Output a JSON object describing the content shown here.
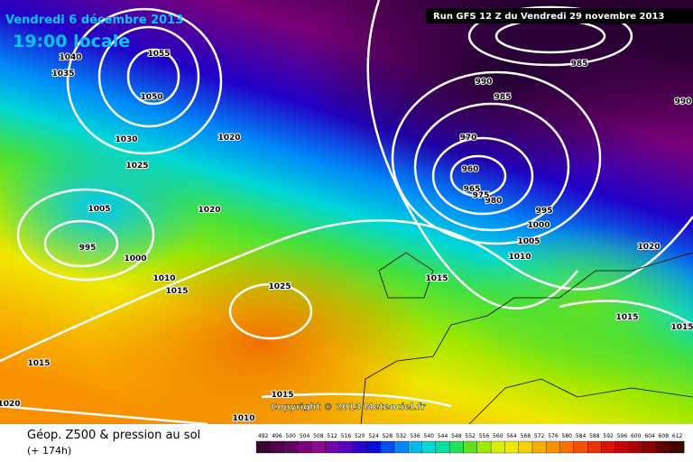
{
  "header": {
    "date": "Vendredi 6 décembre 2013",
    "time": "19:00 locale",
    "run": "Run GFS 12 Z du Vendredi 29 novembre 2013"
  },
  "copyright": "Copyright © 2013 Meteociel.fr",
  "footer": {
    "title": "Géop. Z500 & pression au sol",
    "lead": "(+ 174h)"
  },
  "isobar_labels": [
    "1055",
    "1050",
    "1040",
    "1035",
    "1030",
    "1025",
    "1020",
    "1020",
    "1005",
    "995",
    "1000",
    "1010",
    "1015",
    "1025",
    "1015",
    "1020",
    "1015",
    "1010",
    "1015",
    "1010",
    "1005",
    "1000",
    "995",
    "980",
    "975",
    "965",
    "960",
    "970",
    "985",
    "990",
    "985",
    "990",
    "1020",
    "1015",
    "1015"
  ],
  "scale": {
    "values": [
      492,
      496,
      500,
      504,
      508,
      512,
      516,
      520,
      524,
      528,
      532,
      536,
      540,
      544,
      548,
      552,
      556,
      560,
      564,
      568,
      572,
      576,
      580,
      584,
      588,
      592,
      596,
      600,
      604,
      608,
      612
    ],
    "colors": [
      "#3a0030",
      "#4f0048",
      "#640060",
      "#7a0078",
      "#8a0a90",
      "#7a00a8",
      "#5a00c0",
      "#3000d0",
      "#0010e0",
      "#0050f0",
      "#0088f8",
      "#00b8f0",
      "#00d8d8",
      "#00e0a0",
      "#20e060",
      "#60e020",
      "#a0e800",
      "#d8f000",
      "#f0e800",
      "#f8d000",
      "#f8b000",
      "#f89000",
      "#f87000",
      "#f85000",
      "#f03000",
      "#e01000",
      "#c80000",
      "#a80000",
      "#880000",
      "#600000",
      "#400000"
    ]
  }
}
